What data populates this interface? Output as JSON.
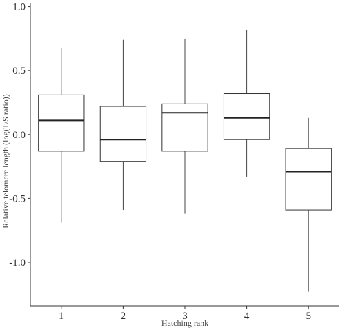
{
  "chart_data": {
    "type": "boxplot",
    "title": "",
    "xlabel": "Hatching rank",
    "ylabel": "Relative telomere length (log(T/S ratio))",
    "categories": [
      "1",
      "2",
      "3",
      "4",
      "5"
    ],
    "ylim": [
      -1.34,
      1.03
    ],
    "yticks": [
      1.0,
      0.5,
      0.0,
      -0.5,
      -1.0
    ],
    "ytick_labels": [
      "1.0",
      "0.5",
      "0.0",
      "-0.5",
      "-1.0"
    ],
    "grid": false,
    "boxes": [
      {
        "category": "1",
        "whisker_low": -0.69,
        "q1": -0.13,
        "median": 0.11,
        "q3": 0.31,
        "whisker_high": 0.68
      },
      {
        "category": "2",
        "whisker_low": -0.59,
        "q1": -0.21,
        "median": -0.04,
        "q3": 0.22,
        "whisker_high": 0.74
      },
      {
        "category": "3",
        "whisker_low": -0.62,
        "q1": -0.13,
        "median": 0.17,
        "q3": 0.24,
        "whisker_high": 0.75
      },
      {
        "category": "4",
        "whisker_low": -0.33,
        "q1": -0.04,
        "median": 0.13,
        "q3": 0.32,
        "whisker_high": 0.82
      },
      {
        "category": "5",
        "whisker_low": -1.23,
        "q1": -0.59,
        "median": -0.29,
        "q3": -0.11,
        "whisker_high": 0.13
      }
    ]
  }
}
